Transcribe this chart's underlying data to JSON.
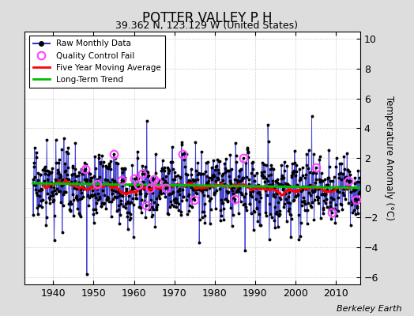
{
  "title": "POTTER VALLEY P H",
  "subtitle": "39.362 N, 123.129 W (United States)",
  "ylabel": "Temperature Anomaly (°C)",
  "credit": "Berkeley Earth",
  "xlim": [
    1933,
    2016
  ],
  "ylim": [
    -6.5,
    10.5
  ],
  "yticks": [
    -6,
    -4,
    -2,
    0,
    2,
    4,
    6,
    8,
    10
  ],
  "xticks": [
    1940,
    1950,
    1960,
    1970,
    1980,
    1990,
    2000,
    2010
  ],
  "raw_color": "#3333cc",
  "dot_color": "#000000",
  "moving_avg_color": "#ff0000",
  "trend_color": "#00bb00",
  "qc_fail_color": "#ff44ff",
  "background_color": "#dddddd",
  "plot_bg_color": "#ffffff",
  "seed": 17,
  "n_months": 972,
  "start_year": 1935.0,
  "noise_std": 1.6,
  "n_qc_fail": 20
}
